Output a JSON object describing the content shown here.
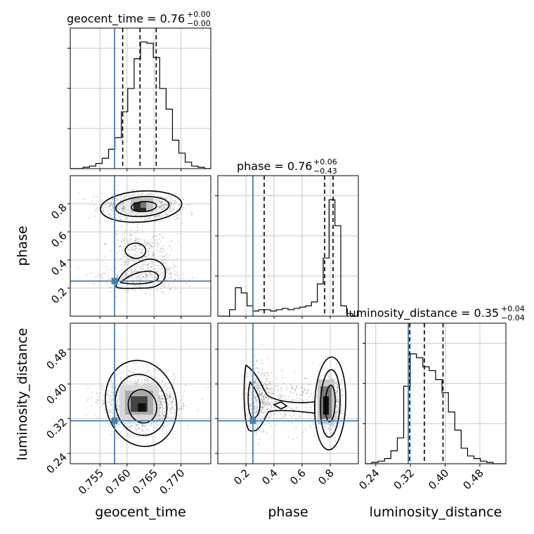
{
  "colors": {
    "truth": "#4682b4",
    "grid": "#c8c8c8",
    "hist": "#000000",
    "scatter": "#8c8c8c"
  },
  "chart_data": {
    "type": "corner",
    "parameters": [
      "geocent_time",
      "phase",
      "luminosity_distance"
    ],
    "titles": [
      {
        "param": "geocent_time",
        "label": "geocent_time = 0.76",
        "upper": "+0.00",
        "lower": "−0.00"
      },
      {
        "param": "phase",
        "label": "phase = 0.76",
        "upper": "+0.06",
        "lower": "−0.43"
      },
      {
        "param": "luminosity_distance",
        "label": "luminosity_distance = 0.35",
        "upper": "+0.04",
        "lower": "−0.04"
      }
    ],
    "axes": {
      "geocent_time": {
        "range": [
          0.7495,
          0.7755
        ],
        "ticks": [
          0.755,
          0.76,
          0.765,
          0.77
        ],
        "tick_labels": [
          "0.755",
          "0.760",
          "0.765",
          "0.770"
        ]
      },
      "phase": {
        "range": [
          0.0,
          1.0
        ],
        "ticks": [
          0.2,
          0.4,
          0.6,
          0.8
        ],
        "tick_labels": [
          "0.2",
          "0.4",
          "0.6",
          "0.8"
        ]
      },
      "luminosity_distance": {
        "range": [
          0.216,
          0.54
        ],
        "ticks": [
          0.24,
          0.32,
          0.4,
          0.48
        ],
        "tick_labels": [
          "0.24",
          "0.32",
          "0.40",
          "0.48"
        ]
      }
    },
    "truths": {
      "geocent_time": 0.7577,
      "phase": 0.25,
      "luminosity_distance": 0.315
    },
    "quantiles": {
      "geocent_time": [
        0.7592,
        0.7624,
        0.7654
      ],
      "phase": [
        0.33,
        0.76,
        0.82
      ],
      "luminosity_distance": [
        0.318,
        0.352,
        0.395
      ]
    },
    "histograms": {
      "geocent_time": [
        0.0,
        0.0,
        0.01,
        0.02,
        0.04,
        0.08,
        0.15,
        0.24,
        0.44,
        0.62,
        0.85,
        0.98,
        0.97,
        0.86,
        0.62,
        0.46,
        0.22,
        0.12,
        0.05,
        0.02,
        0.01,
        0.0
      ],
      "phase": [
        0.0,
        0.0,
        0.05,
        0.22,
        0.18,
        0.08,
        0.04,
        0.05,
        0.05,
        0.04,
        0.05,
        0.06,
        0.05,
        0.06,
        0.07,
        0.08,
        0.11,
        0.25,
        0.45,
        0.9,
        0.7,
        0.08,
        0.02,
        0.0
      ],
      "luminosity_distance": [
        0.0,
        0.01,
        0.02,
        0.04,
        0.1,
        0.2,
        0.6,
        0.85,
        0.82,
        0.75,
        0.72,
        0.65,
        0.55,
        0.4,
        0.26,
        0.12,
        0.06,
        0.04,
        0.02,
        0.01,
        0.0,
        0.0
      ]
    },
    "grid": true
  }
}
